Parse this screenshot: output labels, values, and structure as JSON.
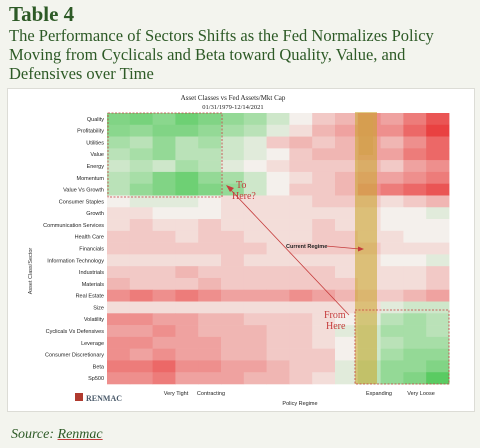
{
  "header": {
    "table_label": "Table 4",
    "subtitle_lines": [
      "The Performance of Sectors Shifts as the Fed Normalizes Policy",
      "Moving from Cyclicals and Beta toward Quality, Value, and",
      "Defensives over Time"
    ]
  },
  "footer": {
    "source_label": "Source:",
    "source_value": "Renmac"
  },
  "logo_text": "RENMAC",
  "colors": {
    "accent_green": "#2d5a26",
    "annotation_red": "#c53c3c",
    "current_regime_band": "#c8a528",
    "heat_positive": "#34c240",
    "heat_negative": "#e82e2e"
  },
  "chart_data": {
    "type": "heatmap",
    "title": "Asset Classes vs Fed Assets/Mkt Cap",
    "subtitle": "01/31/1979-12/14/2021",
    "ylabel": "Asset Class/Sector",
    "xlabel": "Policy Regime",
    "x_regime_labels": [
      "Very Tight",
      "Contracting",
      "Expanding",
      "Very Loose"
    ],
    "categories": [
      "Quality",
      "Profitability",
      "Utilities",
      "Value",
      "Energy",
      "Momentum",
      "Value Vs Growth",
      "Consumer Staples",
      "Growth",
      "Communication Services",
      "Health Care",
      "Financials",
      "Information Technology",
      "Industrials",
      "Materials",
      "Real Estate",
      "Size",
      "Volatility",
      "Cyclicals Vs Defensives",
      "Leverage",
      "Consumer Discretionary",
      "Beta",
      "Sp500"
    ],
    "value_range": [
      -1,
      1
    ],
    "rows": [
      [
        0.6,
        0.65,
        0.55,
        0.7,
        0.6,
        0.5,
        0.4,
        0.2,
        0.0,
        -0.2,
        -0.3,
        -0.5,
        -0.4,
        -0.6,
        -0.8
      ],
      [
        0.55,
        0.5,
        0.6,
        0.6,
        0.5,
        0.4,
        0.3,
        0.1,
        -0.1,
        -0.3,
        -0.4,
        -0.5,
        -0.5,
        -0.7,
        -0.9
      ],
      [
        0.4,
        0.3,
        0.5,
        0.3,
        0.4,
        0.2,
        0.1,
        -0.2,
        -0.3,
        -0.2,
        -0.3,
        -0.4,
        -0.3,
        -0.5,
        -0.7
      ],
      [
        0.3,
        0.4,
        0.5,
        0.3,
        0.3,
        0.2,
        0.1,
        0.0,
        -0.2,
        -0.3,
        -0.3,
        -0.4,
        -0.4,
        -0.6,
        -0.7
      ],
      [
        0.2,
        0.3,
        0.2,
        0.4,
        0.3,
        0.1,
        0.0,
        -0.1,
        -0.2,
        -0.2,
        -0.2,
        -0.3,
        -0.2,
        -0.4,
        -0.5
      ],
      [
        0.3,
        0.4,
        0.6,
        0.7,
        0.5,
        0.4,
        0.2,
        0.0,
        -0.1,
        -0.2,
        -0.3,
        -0.4,
        -0.4,
        -0.5,
        -0.6
      ],
      [
        0.3,
        0.5,
        0.6,
        0.7,
        0.6,
        0.5,
        0.2,
        0.0,
        -0.2,
        -0.2,
        -0.3,
        -0.5,
        -0.6,
        -0.7,
        -0.8
      ],
      [
        0.0,
        0.1,
        0.1,
        0.1,
        0.0,
        -0.1,
        -0.1,
        -0.1,
        -0.1,
        -0.2,
        -0.2,
        -0.2,
        -0.1,
        -0.2,
        -0.3
      ],
      [
        -0.1,
        -0.1,
        0.0,
        0.0,
        0.0,
        -0.1,
        -0.1,
        -0.1,
        -0.1,
        -0.1,
        -0.1,
        -0.1,
        0.0,
        0.0,
        0.1
      ],
      [
        -0.1,
        -0.2,
        -0.1,
        -0.1,
        -0.2,
        -0.1,
        -0.1,
        -0.1,
        -0.1,
        -0.2,
        -0.1,
        -0.1,
        0.0,
        0.0,
        0.0
      ],
      [
        -0.2,
        -0.2,
        -0.2,
        -0.1,
        -0.2,
        -0.2,
        -0.1,
        -0.1,
        -0.1,
        -0.2,
        -0.2,
        -0.1,
        -0.1,
        0.0,
        0.0
      ],
      [
        -0.2,
        -0.2,
        -0.2,
        -0.2,
        -0.2,
        -0.2,
        -0.2,
        -0.1,
        -0.2,
        -0.2,
        -0.2,
        -0.2,
        -0.1,
        -0.1,
        -0.1
      ],
      [
        -0.1,
        -0.1,
        -0.1,
        -0.1,
        -0.1,
        -0.2,
        -0.1,
        -0.1,
        -0.1,
        -0.1,
        -0.1,
        -0.1,
        0.0,
        0.0,
        0.1
      ],
      [
        -0.2,
        -0.2,
        -0.2,
        -0.3,
        -0.2,
        -0.2,
        -0.2,
        -0.2,
        -0.2,
        -0.2,
        -0.1,
        -0.1,
        -0.1,
        -0.1,
        -0.2
      ],
      [
        -0.3,
        -0.2,
        -0.2,
        -0.2,
        -0.3,
        -0.2,
        -0.2,
        -0.2,
        -0.2,
        -0.2,
        -0.2,
        -0.1,
        -0.1,
        -0.1,
        -0.2
      ],
      [
        -0.5,
        -0.6,
        -0.5,
        -0.6,
        -0.5,
        -0.4,
        -0.4,
        -0.4,
        -0.5,
        -0.4,
        -0.3,
        -0.2,
        -0.2,
        -0.3,
        -0.4
      ],
      [
        -0.1,
        -0.1,
        -0.1,
        -0.1,
        -0.1,
        -0.1,
        -0.1,
        -0.1,
        -0.1,
        -0.1,
        -0.1,
        -0.1,
        0.1,
        0.2,
        0.2
      ],
      [
        -0.5,
        -0.5,
        -0.4,
        -0.4,
        -0.3,
        -0.3,
        -0.2,
        -0.2,
        -0.2,
        -0.1,
        0.0,
        0.1,
        0.3,
        0.4,
        0.3
      ],
      [
        -0.4,
        -0.4,
        -0.5,
        -0.4,
        -0.3,
        -0.3,
        -0.3,
        -0.2,
        -0.2,
        -0.1,
        0.1,
        0.2,
        0.4,
        0.4,
        0.3
      ],
      [
        -0.5,
        -0.5,
        -0.4,
        -0.4,
        -0.4,
        -0.3,
        -0.3,
        -0.2,
        -0.2,
        -0.1,
        0.0,
        0.2,
        0.3,
        0.4,
        0.4
      ],
      [
        -0.5,
        -0.4,
        -0.5,
        -0.4,
        -0.4,
        -0.3,
        -0.3,
        -0.2,
        -0.2,
        -0.2,
        0.0,
        0.2,
        0.4,
        0.5,
        0.5
      ],
      [
        -0.6,
        -0.6,
        -0.7,
        -0.5,
        -0.5,
        -0.4,
        -0.4,
        -0.3,
        -0.2,
        -0.2,
        0.1,
        0.3,
        0.5,
        0.5,
        0.6
      ],
      [
        -0.5,
        -0.5,
        -0.6,
        -0.4,
        -0.4,
        -0.4,
        -0.3,
        -0.3,
        -0.2,
        -0.1,
        0.1,
        0.3,
        0.5,
        0.6,
        0.8
      ]
    ],
    "annotations": {
      "to_here": [
        "To",
        "Here?"
      ],
      "from_here": [
        "From",
        "Here"
      ],
      "current_regime": "Current Regime"
    }
  }
}
